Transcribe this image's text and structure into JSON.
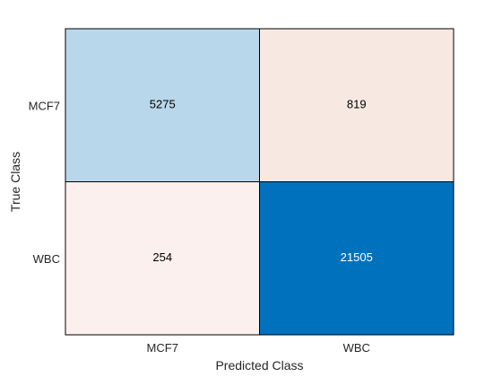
{
  "chart_data": {
    "type": "heatmap",
    "title": "",
    "xlabel": "Predicted Class",
    "ylabel": "True Class",
    "x_categories": [
      "MCF7",
      "WBC"
    ],
    "y_categories": [
      "MCF7",
      "WBC"
    ],
    "values": [
      [
        5275,
        819
      ],
      [
        254,
        21505
      ]
    ],
    "colors": {
      "diagonal_high": "#0072BD",
      "diagonal_low": "#B9D7EA",
      "off_diagonal_low": "#FBF0EE",
      "off_diagonal_high": "#F7E8E2",
      "text_dark": "#000000",
      "text_light": "#ffffff",
      "grid_line": "#000000"
    }
  }
}
